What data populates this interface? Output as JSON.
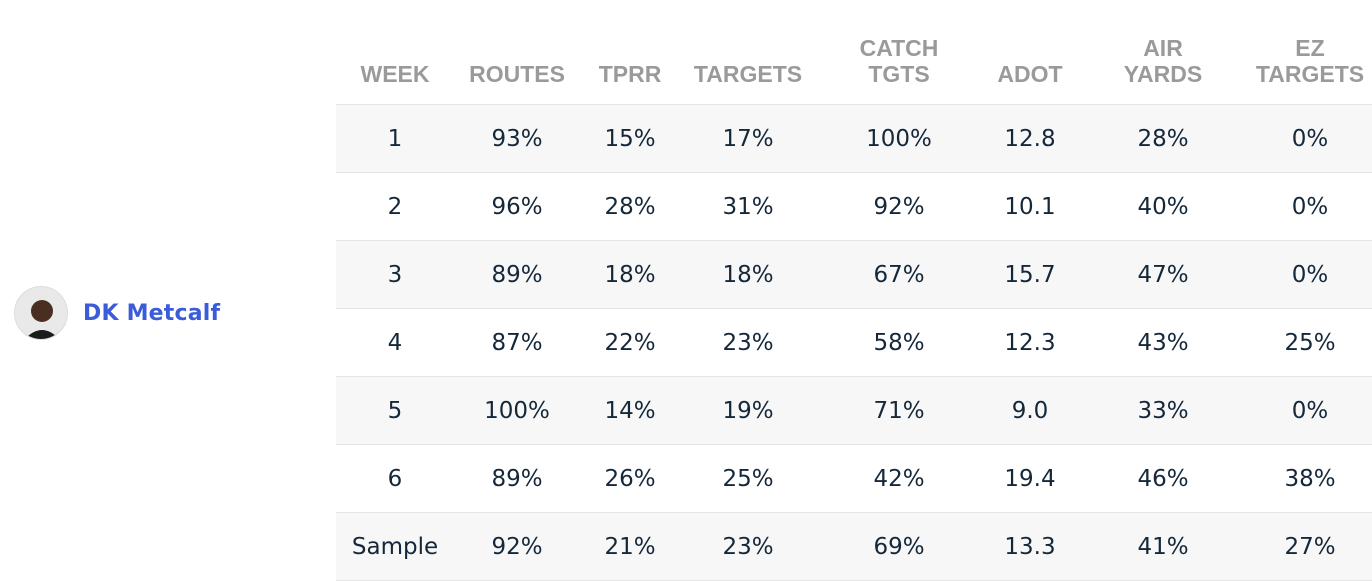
{
  "player": {
    "name": "DK Metcalf"
  },
  "table": {
    "headers": [
      [
        "WEEK"
      ],
      [
        "ROUTES"
      ],
      [
        "TPRR"
      ],
      [
        "TARGETS"
      ],
      [
        "CATCH",
        "TGTS"
      ],
      [
        "ADOT"
      ],
      [
        "AIR",
        "YARDS"
      ],
      [
        "EZ",
        "TARGETS"
      ]
    ],
    "rows": [
      [
        "1",
        "93%",
        "15%",
        "17%",
        "100%",
        "12.8",
        "28%",
        "0%"
      ],
      [
        "2",
        "96%",
        "28%",
        "31%",
        "92%",
        "10.1",
        "40%",
        "0%"
      ],
      [
        "3",
        "89%",
        "18%",
        "18%",
        "67%",
        "15.7",
        "47%",
        "0%"
      ],
      [
        "4",
        "87%",
        "22%",
        "23%",
        "58%",
        "12.3",
        "43%",
        "25%"
      ],
      [
        "5",
        "100%",
        "14%",
        "19%",
        "71%",
        "9.0",
        "33%",
        "0%"
      ],
      [
        "6",
        "89%",
        "26%",
        "25%",
        "42%",
        "19.4",
        "46%",
        "38%"
      ],
      [
        "Sample",
        "92%",
        "21%",
        "23%",
        "69%",
        "13.3",
        "41%",
        "27%"
      ]
    ]
  }
}
